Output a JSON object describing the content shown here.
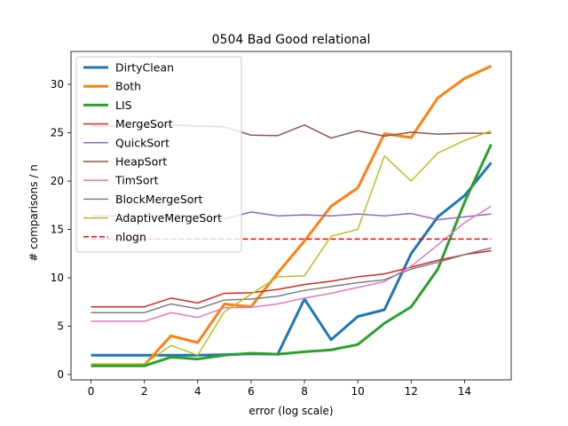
{
  "chart_data": {
    "type": "line",
    "title": "0504 Bad Good relational",
    "xlabel": "error (log scale)",
    "ylabel": "# comparisons / n",
    "xlim": [
      -0.75,
      15.75
    ],
    "ylim": [
      -0.55,
      33.4
    ],
    "x_ticks": [
      0,
      2,
      4,
      6,
      8,
      10,
      12,
      14
    ],
    "y_ticks": [
      0,
      5,
      10,
      15,
      20,
      25,
      30
    ],
    "grid": false,
    "legend_position": "upper left",
    "x": [
      0,
      1,
      2,
      3,
      4,
      5,
      6,
      7,
      8,
      9,
      10,
      11,
      12,
      13,
      14,
      15
    ],
    "series": [
      {
        "name": "DirtyClean",
        "color": "#1f77b4",
        "width": 3,
        "dash": "",
        "values": [
          2.0,
          2.0,
          2.0,
          2.0,
          2.0,
          2.05,
          2.15,
          2.1,
          7.8,
          3.6,
          6.0,
          6.7,
          12.5,
          16.3,
          18.5,
          21.9
        ]
      },
      {
        "name": "Both",
        "color": "#ff7f0e",
        "width": 3,
        "dash": "",
        "values": [
          1.0,
          1.0,
          1.0,
          4.0,
          3.3,
          7.3,
          7.0,
          10.5,
          13.8,
          17.4,
          19.3,
          24.9,
          24.5,
          28.6,
          30.6,
          31.9
        ]
      },
      {
        "name": "LIS",
        "color": "#2ca02c",
        "width": 3,
        "dash": "",
        "values": [
          0.9,
          0.9,
          0.9,
          1.8,
          1.6,
          2.0,
          2.2,
          2.1,
          2.35,
          2.55,
          3.1,
          5.3,
          7.0,
          10.9,
          17.8,
          23.8
        ]
      },
      {
        "name": "MergeSort",
        "color": "#d62728",
        "width": 1.5,
        "dash": "",
        "values": [
          7.0,
          7.0,
          7.0,
          7.9,
          7.4,
          8.4,
          8.45,
          8.8,
          9.3,
          9.65,
          10.1,
          10.4,
          11.1,
          11.8,
          12.4,
          12.8
        ]
      },
      {
        "name": "QuickSort",
        "color": "#9467bd",
        "width": 1.5,
        "dash": "",
        "values": [
          16.4,
          16.4,
          16.4,
          16.5,
          16.4,
          16.1,
          16.8,
          16.4,
          16.5,
          16.4,
          16.6,
          16.4,
          16.65,
          16.0,
          16.3,
          16.6
        ]
      },
      {
        "name": "HeapSort",
        "color": "#8c564b",
        "width": 1.5,
        "dash": "",
        "values": [
          25.7,
          25.7,
          25.7,
          25.8,
          25.7,
          25.6,
          24.75,
          24.7,
          25.8,
          24.45,
          25.2,
          24.65,
          25.05,
          24.85,
          24.95,
          24.95
        ]
      },
      {
        "name": "TimSort",
        "color": "#e377c2",
        "width": 1.5,
        "dash": "",
        "values": [
          5.5,
          5.5,
          5.5,
          6.4,
          5.9,
          6.9,
          6.95,
          7.3,
          7.9,
          8.4,
          9.0,
          9.6,
          11.2,
          13.4,
          15.7,
          17.4
        ]
      },
      {
        "name": "BlockMergeSort",
        "color": "#7f7f7f",
        "width": 1.5,
        "dash": "",
        "values": [
          6.4,
          6.4,
          6.4,
          7.3,
          6.8,
          7.7,
          7.8,
          8.1,
          8.7,
          9.1,
          9.5,
          9.8,
          10.9,
          11.6,
          12.4,
          13.1
        ]
      },
      {
        "name": "AdaptiveMergeSort",
        "color": "#bcbd22",
        "width": 1.5,
        "dash": "",
        "values": [
          1.1,
          1.1,
          1.1,
          3.0,
          2.0,
          6.5,
          8.3,
          10.1,
          10.2,
          14.3,
          15.0,
          22.6,
          20.0,
          22.9,
          24.2,
          25.2
        ]
      },
      {
        "name": "nlogn",
        "color": "#ff0000",
        "width": 1.5,
        "dash": "6,3",
        "values": [
          14.0,
          14.0,
          14.0,
          14.0,
          14.0,
          14.0,
          14.0,
          14.0,
          14.0,
          14.0,
          14.0,
          14.0,
          14.0,
          14.0,
          14.0,
          14.0
        ]
      }
    ]
  }
}
